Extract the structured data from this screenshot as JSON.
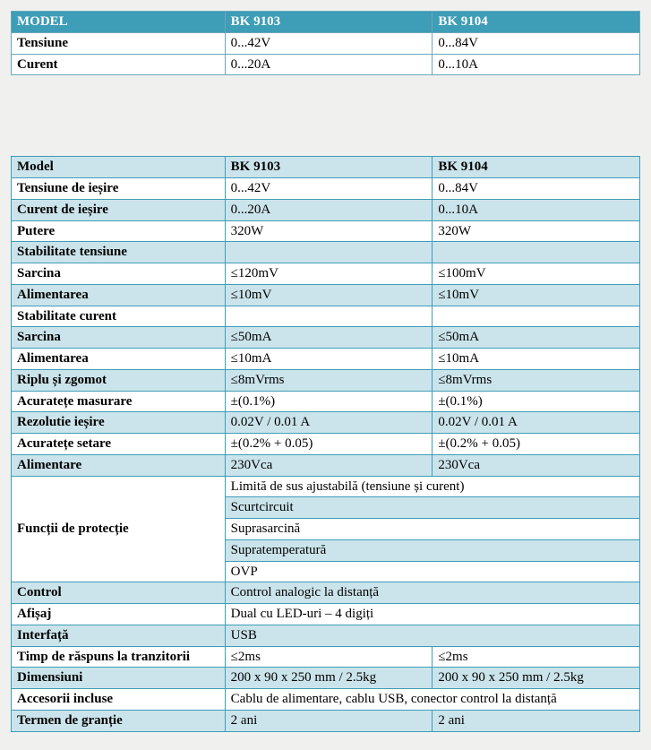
{
  "colors": {
    "page_bg": "#f0f1ef",
    "t1_header_bg": "#3e9db7",
    "t1_header_fg": "#ffffff",
    "t1_border": "#6aa7b8",
    "t2_band_bg": "#cbe4eb",
    "t2_border": "#3e9db7"
  },
  "table1": {
    "headers": [
      "MODEL",
      "BK 9103",
      "BK 9104"
    ],
    "rows": [
      {
        "label": "Tensiune",
        "c1": "0...42V",
        "c2": "0...84V"
      },
      {
        "label": "Curent",
        "c1": "0...20A",
        "c2": "0...10A"
      }
    ]
  },
  "table2": {
    "headers": [
      "Model",
      "BK 9103",
      "BK 9104"
    ],
    "rows": [
      {
        "type": "two",
        "band": "a",
        "label": "Tensiune de ieșire",
        "c1": "0...42V",
        "c2": "0...84V"
      },
      {
        "type": "two",
        "band": "b",
        "label": "Curent de ieșire",
        "c1": "0...20A",
        "c2": "0...10A"
      },
      {
        "type": "two",
        "band": "a",
        "label": "Putere",
        "c1": "320W",
        "c2": "320W"
      },
      {
        "type": "section",
        "band": "b",
        "label": "Stabilitate tensiune"
      },
      {
        "type": "two",
        "band": "a",
        "label": "Sarcina",
        "c1": "≤120mV",
        "c2": "≤100mV"
      },
      {
        "type": "two",
        "band": "b",
        "label": "Alimentarea",
        "c1": "≤10mV",
        "c2": "≤10mV"
      },
      {
        "type": "section",
        "band": "a",
        "label": "Stabilitate curent"
      },
      {
        "type": "two",
        "band": "b",
        "label": "Sarcina",
        "c1": "≤50mA",
        "c2": "≤50mA"
      },
      {
        "type": "two",
        "band": "a",
        "label": "Alimentarea",
        "c1": "≤10mA",
        "c2": "≤10mA"
      },
      {
        "type": "two",
        "band": "b",
        "label": "Riplu și zgomot",
        "c1": "≤8mVrms",
        "c2": "≤8mVrms"
      },
      {
        "type": "two",
        "band": "a",
        "label": "Acuratețe masurare",
        "c1": "±(0.1%)",
        "c2": "±(0.1%)"
      },
      {
        "type": "two",
        "band": "b",
        "label": "Rezolutie ieșire",
        "c1": "0.02V / 0.01 A",
        "c2": "0.02V / 0.01 A"
      },
      {
        "type": "two",
        "band": "a",
        "label": "Acuratețe setare",
        "c1": "±(0.2% + 0.05)",
        "c2": "±(0.2% + 0.05)"
      },
      {
        "type": "two",
        "band": "b",
        "label": "Alimentare",
        "c1": "230Vca",
        "c2": "230Vca"
      },
      {
        "type": "group",
        "label": "Funcții de protecție",
        "items": [
          {
            "band": "a",
            "text": "Limită de sus ajustabilă (tensiune și curent)"
          },
          {
            "band": "b",
            "text": "Scurtcircuit"
          },
          {
            "band": "a",
            "text": "Suprasarcină"
          },
          {
            "band": "b",
            "text": "Supratemperatură"
          },
          {
            "band": "a",
            "text": "OVP"
          }
        ]
      },
      {
        "type": "span",
        "band": "b",
        "label": "Control",
        "c": "Control analogic la distanță"
      },
      {
        "type": "span",
        "band": "a",
        "label": "Afișaj",
        "c": "Dual cu LED-uri – 4 digiți"
      },
      {
        "type": "span",
        "band": "b",
        "label": "Interfață",
        "c": "USB"
      },
      {
        "type": "two",
        "band": "a",
        "label": "Timp de răspuns la tranzitorii",
        "c1": "≤2ms",
        "c2": "≤2ms"
      },
      {
        "type": "two",
        "band": "b",
        "label": "Dimensiuni",
        "c1": "200 x 90 x 250 mm / 2.5kg",
        "c2": "200 x 90 x 250 mm / 2.5kg"
      },
      {
        "type": "span",
        "band": "a",
        "label": "Accesorii incluse",
        "c": "Cablu de alimentare, cablu USB, conector control la distanță"
      },
      {
        "type": "two",
        "band": "b",
        "label": "Termen de granție",
        "c1": "2 ani",
        "c2": "2 ani"
      }
    ]
  }
}
